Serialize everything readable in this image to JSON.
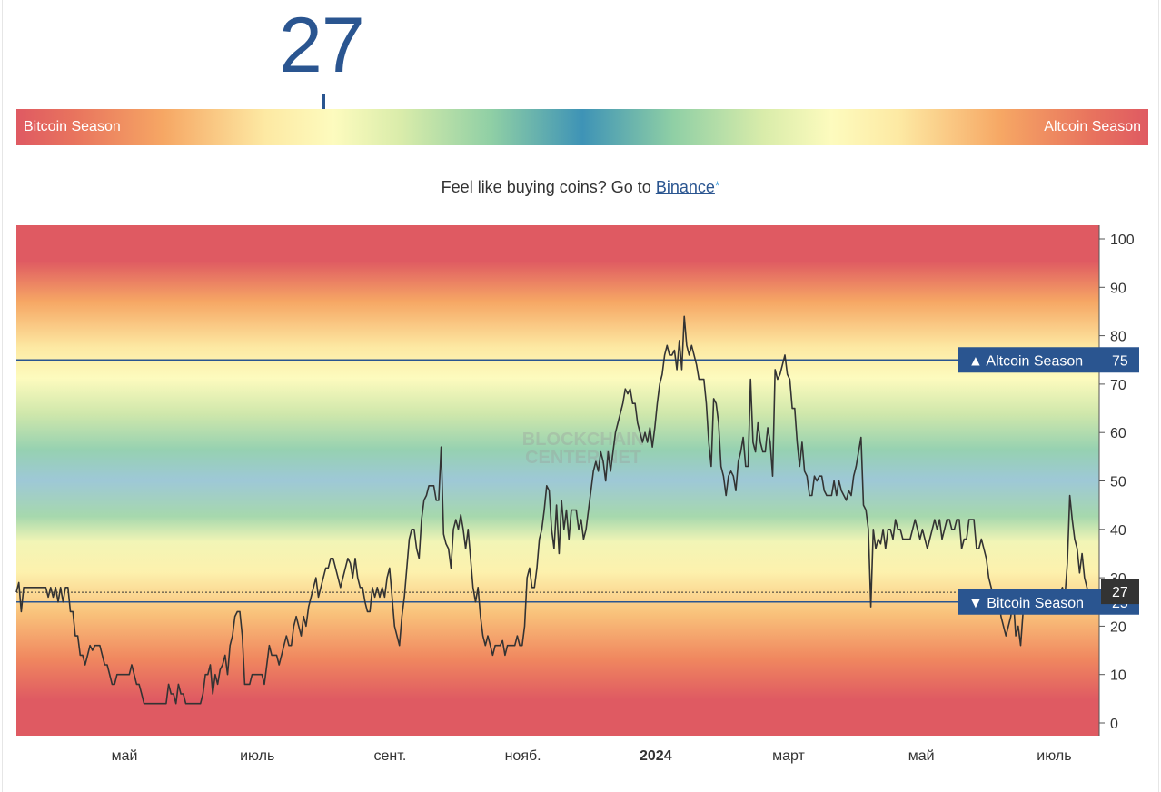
{
  "current_index": "27",
  "gauge": {
    "left_label": "Bitcoin Season",
    "right_label": "Altcoin Season",
    "value": 27
  },
  "promo": {
    "text": "Feel like buying coins? Go to ",
    "link_text": "Binance",
    "suffix": "*"
  },
  "watermark": {
    "line1": "BLOCKCHAIN",
    "line2": "CENTER.NET"
  },
  "colors": {
    "accent": "#2a5590",
    "line": "#333333",
    "altcoin_season": "#df5a62",
    "bitcoin_season": "#df5a62",
    "neutral": "#3e93b6"
  },
  "chart_data": {
    "type": "line",
    "y_ticks": [
      "0",
      "10",
      "20",
      "30",
      "40",
      "50",
      "60",
      "70",
      "80",
      "90",
      "100"
    ],
    "x_ticks": [
      "май",
      "июль",
      "сент.",
      "нояб.",
      "2024",
      "март",
      "май",
      "июль"
    ],
    "ylim": [
      0,
      100
    ],
    "grid": false,
    "thresholds": [
      {
        "label": "▲ Altcoin Season",
        "value": "75"
      },
      {
        "label": "▼ Bitcoin Season",
        "value": "25"
      }
    ],
    "current": {
      "value": "27"
    },
    "series": [
      {
        "values": [
          27,
          29,
          23,
          28,
          28,
          28,
          28,
          28,
          28,
          28,
          28,
          28,
          28,
          26,
          28,
          26,
          28,
          25,
          28,
          25,
          28,
          28,
          23,
          23,
          18,
          18,
          14,
          14,
          12,
          14,
          16,
          15,
          16,
          16,
          16,
          14,
          12,
          12,
          10,
          8,
          8,
          10,
          10,
          10,
          10,
          10,
          10,
          12,
          10,
          8,
          8,
          6,
          4,
          4,
          4,
          4,
          4,
          4,
          4,
          4,
          4,
          4,
          8,
          6,
          6,
          4,
          8,
          6,
          6,
          4,
          4,
          4,
          4,
          4,
          4,
          4,
          6,
          10,
          10,
          12,
          6,
          10,
          8,
          11,
          12,
          14,
          10,
          16,
          18,
          22,
          23,
          23,
          18,
          8,
          8,
          8,
          10,
          10,
          10,
          10,
          10,
          8,
          12,
          16,
          14,
          14,
          14,
          12,
          14,
          16,
          18,
          16,
          16,
          20,
          22,
          20,
          18,
          22,
          20,
          24,
          26,
          28,
          30,
          26,
          28,
          30,
          32,
          32,
          34,
          34,
          32,
          30,
          28,
          30,
          32,
          34,
          33,
          30,
          34,
          30,
          28,
          28,
          25,
          23,
          23,
          28,
          26,
          28,
          26,
          28,
          26,
          30,
          32,
          26,
          20,
          18,
          16,
          22,
          26,
          32,
          38,
          40,
          40,
          36,
          34,
          42,
          46,
          47,
          49,
          49,
          49,
          46,
          46,
          57,
          39,
          37,
          36,
          32,
          40,
          42,
          40,
          43,
          40,
          36,
          40,
          34,
          28,
          25,
          28,
          22,
          18,
          16,
          18,
          16,
          14,
          16,
          16,
          16,
          17,
          14,
          16,
          16,
          16,
          16,
          18,
          16,
          16,
          20,
          30,
          32,
          28,
          28,
          32,
          38,
          40,
          44,
          49,
          48,
          40,
          36,
          45,
          35,
          46,
          40,
          44,
          38,
          44,
          44,
          44,
          40,
          42,
          38,
          40,
          44,
          48,
          52,
          54,
          52,
          56,
          54,
          50,
          56,
          52,
          56,
          60,
          62,
          64,
          66,
          69,
          68,
          69,
          66,
          66,
          62,
          60,
          58,
          60,
          58,
          61,
          57,
          61,
          66,
          70,
          72,
          76,
          78,
          76,
          76,
          77,
          73,
          79,
          73,
          84,
          78,
          76,
          78,
          76,
          74,
          71,
          71,
          71,
          66,
          58,
          53,
          67,
          66,
          62,
          53,
          51,
          47,
          51,
          52,
          51,
          48,
          54,
          56,
          59,
          53,
          53,
          71,
          58,
          56,
          62,
          58,
          56,
          56,
          61,
          58,
          51,
          73,
          71,
          72,
          74,
          76,
          72,
          71,
          65,
          65,
          58,
          53,
          58,
          52,
          51,
          47,
          47,
          51,
          50,
          51,
          51,
          48,
          47,
          47,
          47,
          50,
          47,
          50,
          48,
          47,
          46,
          48,
          47,
          51,
          53,
          56,
          59,
          45,
          44,
          40,
          24,
          40,
          36,
          38,
          37,
          40,
          36,
          40,
          40,
          38,
          42,
          40,
          40,
          38,
          38,
          38,
          38,
          40,
          42,
          40,
          38,
          40,
          38,
          36,
          38,
          40,
          42,
          40,
          42,
          38,
          40,
          42,
          42,
          40,
          40,
          42,
          42,
          36,
          38,
          38,
          42,
          42,
          42,
          36,
          36,
          38,
          36,
          34,
          30,
          28,
          26,
          24,
          26,
          22,
          20,
          18,
          20,
          22,
          26,
          18,
          20,
          16,
          23,
          25,
          24,
          24,
          25,
          23,
          25,
          24,
          24,
          24,
          25,
          26,
          27,
          26,
          24,
          27,
          28,
          26,
          33,
          47,
          42,
          38,
          36,
          31,
          35,
          30,
          28,
          25,
          24,
          24,
          23,
          24
        ]
      }
    ]
  }
}
